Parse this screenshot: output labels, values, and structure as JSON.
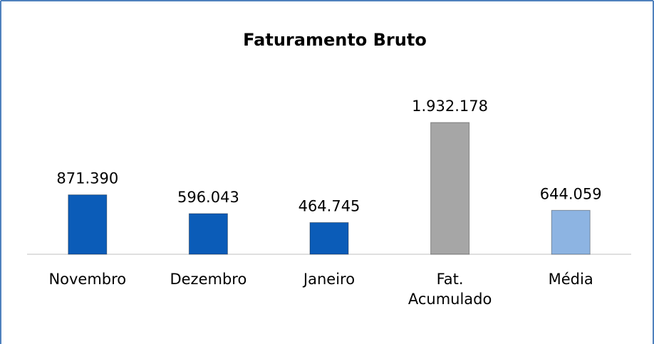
{
  "chart_data": {
    "type": "bar",
    "title": "Faturamento Bruto",
    "categories": [
      "Novembro",
      "Dezembro",
      "Janeiro",
      "Fat. Acumulado",
      "Média"
    ],
    "values": [
      871390,
      596043,
      464745,
      1932178,
      644059
    ],
    "value_labels": [
      "871.390",
      "596.043",
      "464.745",
      "1.932.178",
      "644.059"
    ],
    "colors": [
      "#0b5cb8",
      "#0b5cb8",
      "#0b5cb8",
      "#a6a6a6",
      "#8db4e2"
    ]
  }
}
